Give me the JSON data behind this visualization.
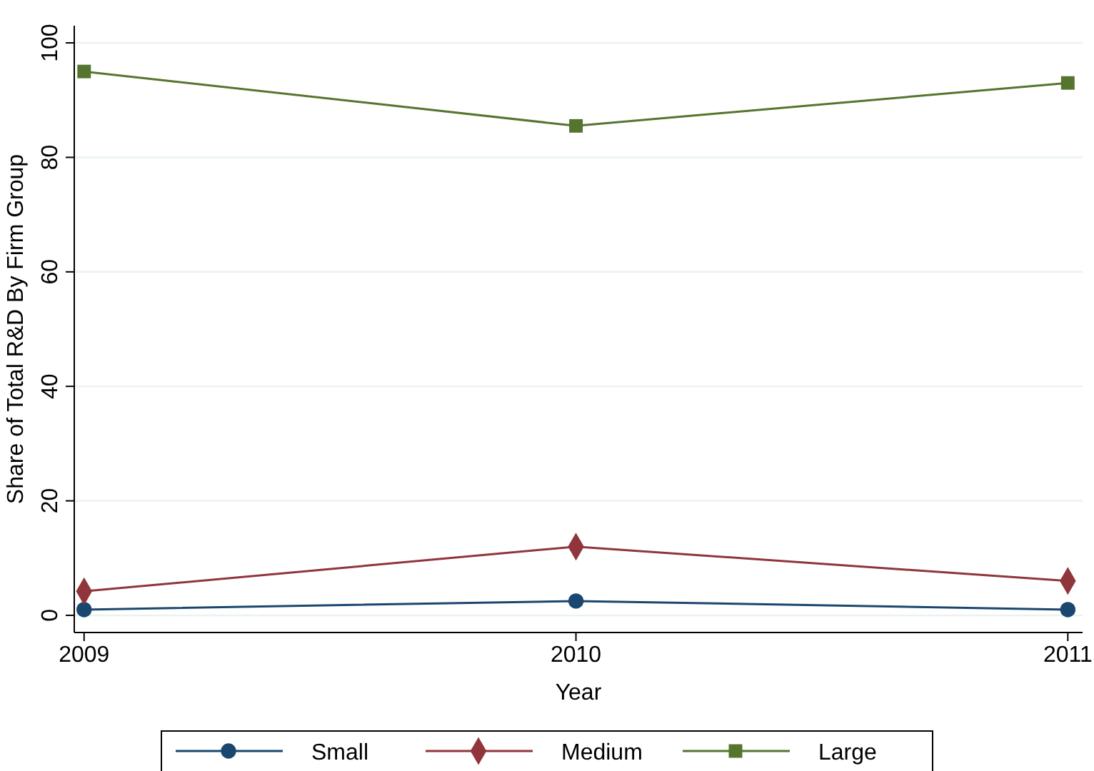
{
  "chart_data": {
    "type": "line",
    "xlabel": "Year",
    "ylabel": "Share of Total R&D By Firm Group",
    "x": [
      2009,
      2010,
      2011
    ],
    "xlim": [
      2008.98,
      2011.03
    ],
    "xticks": [
      2009,
      2010,
      2011
    ],
    "ylim": [
      -3,
      103
    ],
    "yticks": [
      0,
      20,
      40,
      60,
      80,
      100
    ],
    "grid": "y",
    "legend": "bottom",
    "line_style": "solid",
    "series": [
      {
        "name": "Small",
        "color": "#1a476f",
        "marker": "circle",
        "values": [
          1,
          2.5,
          1
        ]
      },
      {
        "name": "Medium",
        "color": "#90353b",
        "marker": "diamond",
        "values": [
          4.2,
          12,
          6
        ]
      },
      {
        "name": "Large",
        "color": "#55752f",
        "marker": "square",
        "values": [
          95,
          85.5,
          93
        ]
      }
    ]
  }
}
